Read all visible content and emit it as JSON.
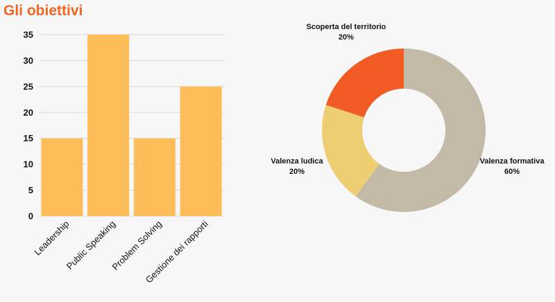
{
  "title": "Gli obiettivi",
  "chart_data": [
    {
      "type": "bar",
      "categories": [
        "Leadership",
        "Public Speaking",
        "Problem Solving",
        "Gestione dei rapporti"
      ],
      "values": [
        15,
        35,
        15,
        25
      ],
      "yticks": [
        "0",
        "5",
        "10",
        "15",
        "20",
        "25",
        "30",
        "35"
      ],
      "ylim": [
        0,
        35
      ],
      "grid": true,
      "bar_color": "#ffbd59",
      "grid_color": "#d8d8d8"
    },
    {
      "type": "pie",
      "donut": true,
      "labels": [
        "Valenza formativa",
        "Valenza ludica",
        "Scoperta del territorio"
      ],
      "values": [
        60,
        20,
        20
      ],
      "percent_labels": [
        "60%",
        "20%",
        "20%"
      ],
      "colors": [
        "#c2b9a7",
        "#edce72",
        "#f15b24"
      ]
    }
  ]
}
